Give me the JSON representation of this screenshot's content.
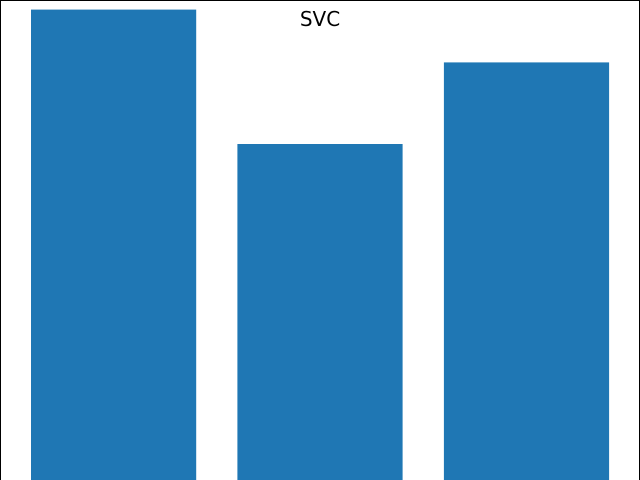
{
  "chart_data": {
    "type": "bar",
    "title": "SVC",
    "categories": [
      "",
      "",
      ""
    ],
    "values": [
      0.98,
      0.7,
      0.87
    ],
    "ylim": [
      0,
      1.0
    ],
    "xlabel": "",
    "ylabel": "",
    "grid": false,
    "colors": {
      "bar": "#1f77b4",
      "frame": "#000000",
      "background": "#ffffff"
    }
  }
}
